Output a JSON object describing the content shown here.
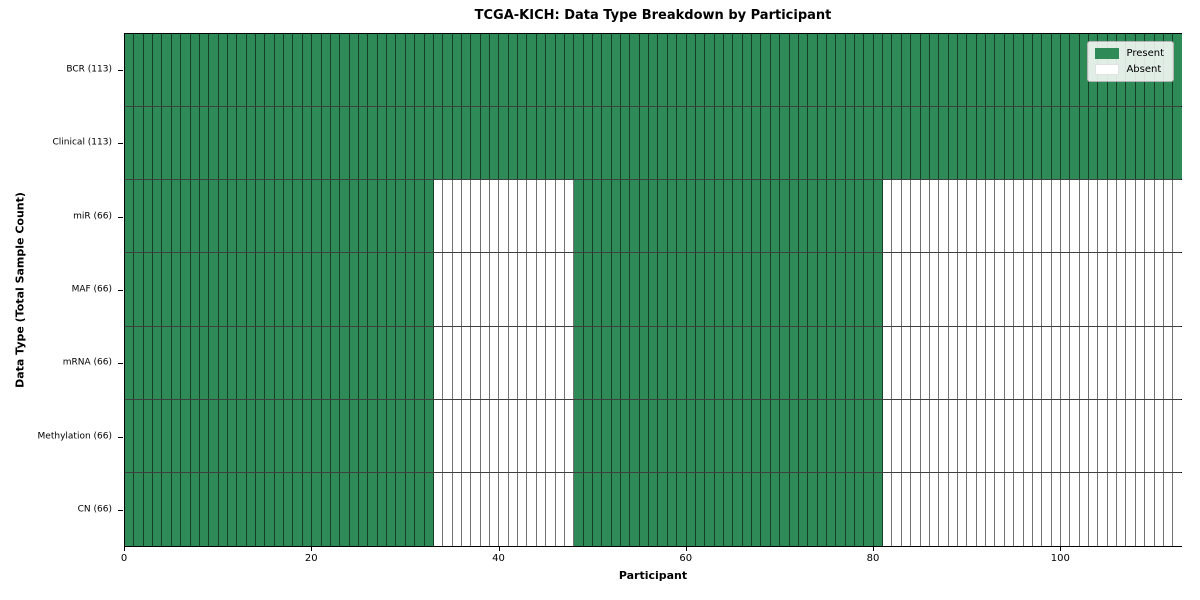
{
  "chart_data": {
    "type": "heatmap",
    "title": "TCGA-KICH: Data Type Breakdown by Participant",
    "xlabel": "Participant",
    "ylabel": "Data Type (Total Sample Count)",
    "x_range": [
      0,
      113
    ],
    "n_participants": 113,
    "x_ticks": [
      0,
      20,
      40,
      60,
      80,
      100
    ],
    "rows": [
      {
        "label": "BCR (113)",
        "data_type": "BCR",
        "total_sample_count": 113,
        "present_runs": [
          [
            0,
            113
          ]
        ]
      },
      {
        "label": "Clinical (113)",
        "data_type": "Clinical",
        "total_sample_count": 113,
        "present_runs": [
          [
            0,
            113
          ]
        ]
      },
      {
        "label": "miR (66)",
        "data_type": "miR",
        "total_sample_count": 66,
        "present_runs": [
          [
            0,
            33
          ],
          [
            48,
            81
          ]
        ]
      },
      {
        "label": "MAF (66)",
        "data_type": "MAF",
        "total_sample_count": 66,
        "present_runs": [
          [
            0,
            33
          ],
          [
            48,
            81
          ]
        ]
      },
      {
        "label": "mRNA (66)",
        "data_type": "mRNA",
        "total_sample_count": 66,
        "present_runs": [
          [
            0,
            33
          ],
          [
            48,
            81
          ]
        ]
      },
      {
        "label": "Methylation (66)",
        "data_type": "Methylation",
        "total_sample_count": 66,
        "present_runs": [
          [
            0,
            33
          ],
          [
            48,
            81
          ]
        ]
      },
      {
        "label": "CN (66)",
        "data_type": "CN",
        "total_sample_count": 66,
        "present_runs": [
          [
            0,
            33
          ],
          [
            48,
            81
          ]
        ]
      }
    ],
    "colors": {
      "present": "#2e8b57",
      "absent": "#ffffff"
    },
    "legend": [
      {
        "label": "Present",
        "color": "#2e8b57"
      },
      {
        "label": "Absent",
        "color": "#ffffff"
      }
    ],
    "legend_position": "upper right",
    "grid": "cell-borders"
  }
}
